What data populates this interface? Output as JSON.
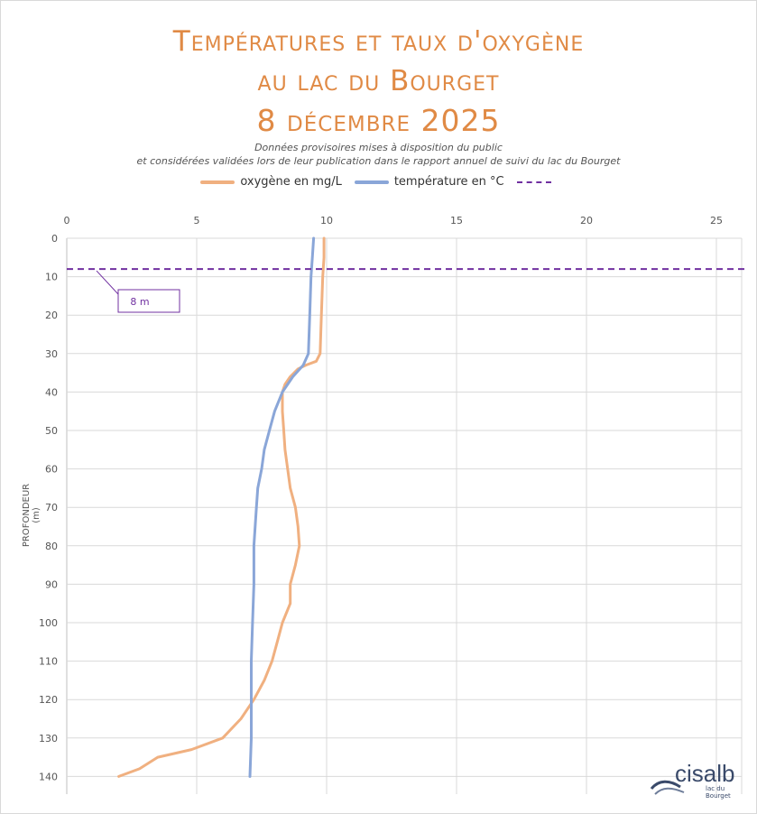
{
  "title": {
    "line1": "Températures et taux d'oxygène",
    "line2": "au lac du Bourget",
    "line3": "8 décembre 2025"
  },
  "subtitle": {
    "line1": "Données provisoires mises à disposition du public",
    "line2": "et considérées validées lors de leur publication dans le rapport annuel de suivi du lac du Bourget"
  },
  "legend": {
    "oxygen": "oxygène en mg/L",
    "temperature": "température en °C",
    "dashed": ""
  },
  "annotation": {
    "label": "8 m",
    "depth": 8
  },
  "logo": {
    "name": "cisalb",
    "tagline": "lac du Bourget"
  },
  "colors": {
    "oxygen": "#f0b080",
    "temperature": "#8aa6d8",
    "dashed": "#7030a0",
    "title": "#e08a45"
  },
  "chart_data": {
    "type": "line",
    "xlabel": "",
    "ylabel": "PROFONDEUR (m)",
    "xlim": [
      0,
      25
    ],
    "ylim": [
      0,
      140
    ],
    "x_ticks": [
      0,
      5,
      10,
      15,
      20,
      25
    ],
    "y_ticks": [
      0,
      10,
      20,
      30,
      40,
      50,
      60,
      70,
      80,
      90,
      100,
      110,
      120,
      130,
      140
    ],
    "grid": true,
    "legend_position": "top",
    "x_axis_position": "top",
    "y_axis_inverted": true,
    "series": [
      {
        "name": "oxygène en mg/L",
        "points": [
          [
            9.9,
            0
          ],
          [
            9.9,
            5
          ],
          [
            9.85,
            10
          ],
          [
            9.8,
            20
          ],
          [
            9.75,
            30
          ],
          [
            9.6,
            32
          ],
          [
            9.2,
            33
          ],
          [
            8.9,
            34
          ],
          [
            8.6,
            36
          ],
          [
            8.4,
            38
          ],
          [
            8.3,
            40
          ],
          [
            8.3,
            45
          ],
          [
            8.35,
            50
          ],
          [
            8.4,
            55
          ],
          [
            8.5,
            60
          ],
          [
            8.6,
            65
          ],
          [
            8.8,
            70
          ],
          [
            8.9,
            75
          ],
          [
            8.95,
            80
          ],
          [
            8.8,
            85
          ],
          [
            8.6,
            90
          ],
          [
            8.6,
            95
          ],
          [
            8.3,
            100
          ],
          [
            8.1,
            105
          ],
          [
            7.9,
            110
          ],
          [
            7.6,
            115
          ],
          [
            7.2,
            120
          ],
          [
            6.7,
            125
          ],
          [
            6.0,
            130
          ],
          [
            4.8,
            133
          ],
          [
            3.5,
            135
          ],
          [
            2.8,
            138
          ],
          [
            2.0,
            140
          ]
        ]
      },
      {
        "name": "température en °C",
        "points": [
          [
            9.5,
            0
          ],
          [
            9.45,
            5
          ],
          [
            9.4,
            10
          ],
          [
            9.35,
            20
          ],
          [
            9.3,
            30
          ],
          [
            9.1,
            33
          ],
          [
            8.7,
            36
          ],
          [
            8.3,
            40
          ],
          [
            8.0,
            45
          ],
          [
            7.8,
            50
          ],
          [
            7.6,
            55
          ],
          [
            7.5,
            60
          ],
          [
            7.35,
            65
          ],
          [
            7.3,
            70
          ],
          [
            7.25,
            75
          ],
          [
            7.2,
            80
          ],
          [
            7.2,
            90
          ],
          [
            7.15,
            100
          ],
          [
            7.1,
            110
          ],
          [
            7.1,
            120
          ],
          [
            7.1,
            130
          ],
          [
            7.05,
            140
          ]
        ]
      }
    ]
  }
}
